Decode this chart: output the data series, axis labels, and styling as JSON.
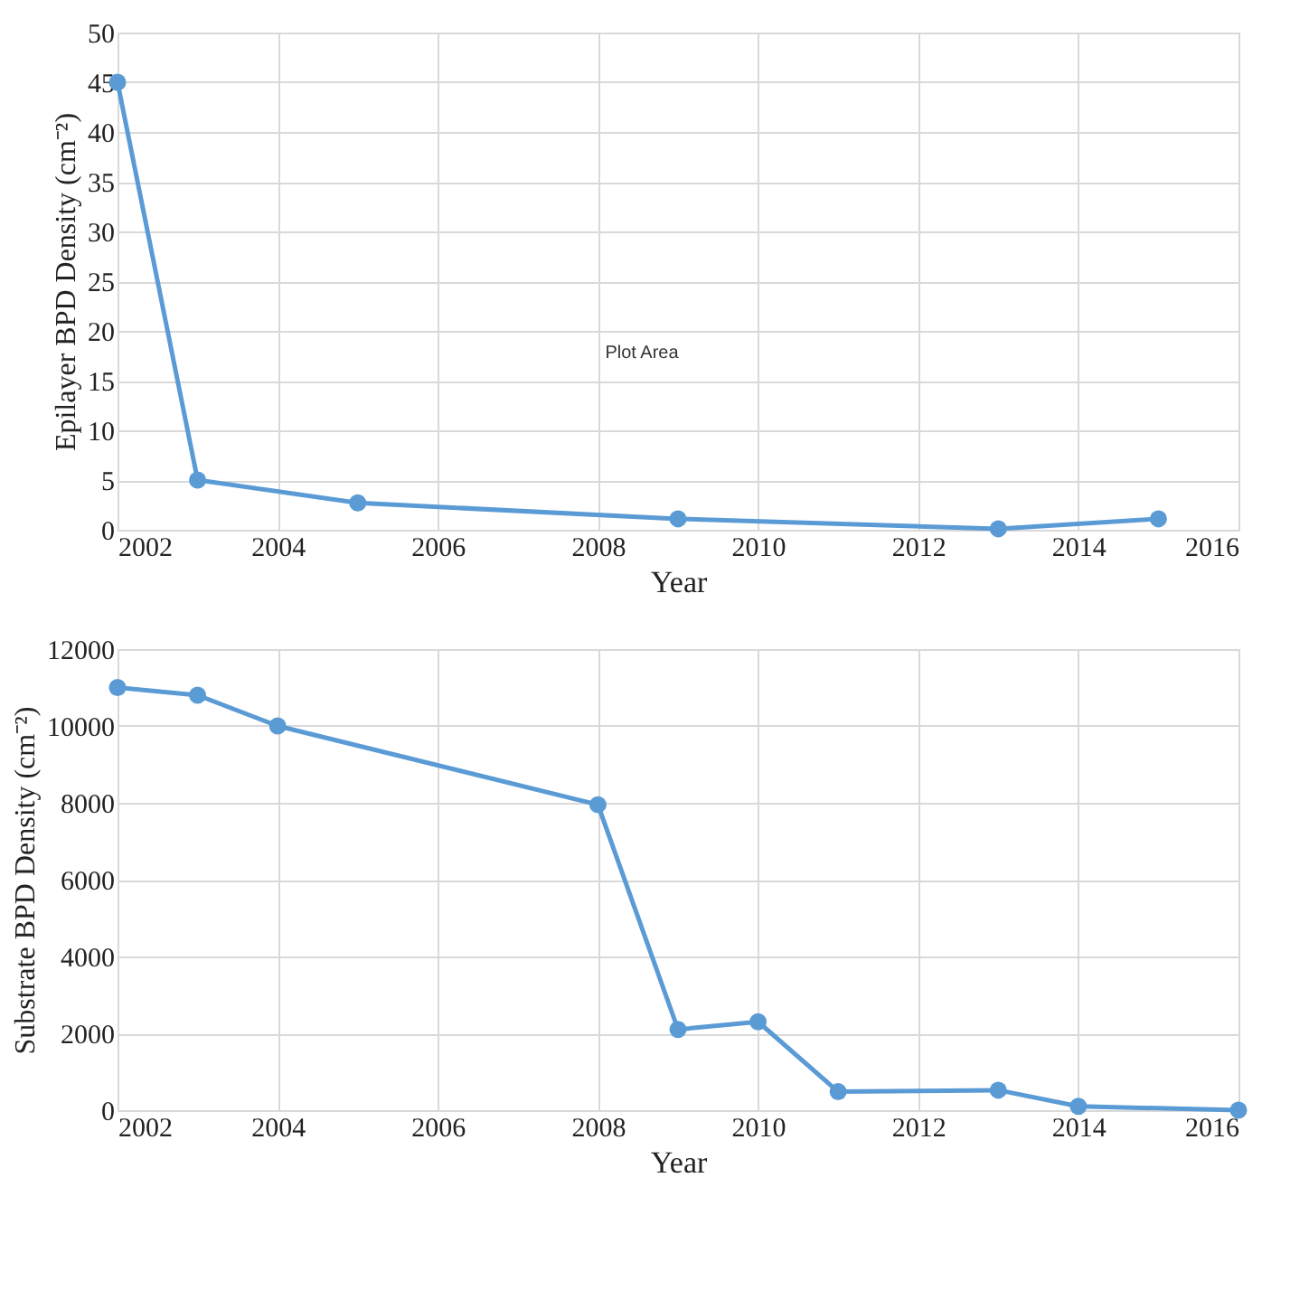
{
  "chart_data": [
    {
      "type": "line",
      "xlabel": "Year",
      "ylabel": "Epilayer BPD Density (cm⁻²)",
      "x": [
        2002,
        2003,
        2005,
        2009,
        2013,
        2015
      ],
      "series": [
        {
          "color": "#5b9bd5",
          "values": [
            45,
            5,
            2.7,
            1.1,
            0.1,
            1.1
          ]
        }
      ],
      "xlim": [
        2002,
        2016
      ],
      "xticks": [
        2002,
        2004,
        2006,
        2008,
        2010,
        2012,
        2014,
        2016
      ],
      "ylim": [
        0,
        50
      ],
      "yticks": [
        0,
        5,
        10,
        15,
        20,
        25,
        30,
        35,
        40,
        45,
        50
      ],
      "grid": true,
      "marker": "circle",
      "line_style": "solid",
      "annotations": [
        "Plot Area"
      ]
    },
    {
      "type": "line",
      "xlabel": "Year",
      "ylabel": "Substrate BPD Density (cm⁻²)",
      "x": [
        2002,
        2003,
        2004,
        2008,
        2009,
        2010,
        2011,
        2013,
        2014,
        2016
      ],
      "series": [
        {
          "color": "#5b9bd5",
          "values": [
            11000,
            10800,
            10000,
            7950,
            2100,
            2300,
            480,
            520,
            100,
            0
          ]
        }
      ],
      "xlim": [
        2002,
        2016
      ],
      "xticks": [
        2002,
        2004,
        2006,
        2008,
        2010,
        2012,
        2014,
        2016
      ],
      "ylim": [
        0,
        12000
      ],
      "yticks": [
        0,
        2000,
        4000,
        6000,
        8000,
        10000,
        12000
      ],
      "grid": true,
      "marker": "circle",
      "line_style": "solid"
    }
  ]
}
